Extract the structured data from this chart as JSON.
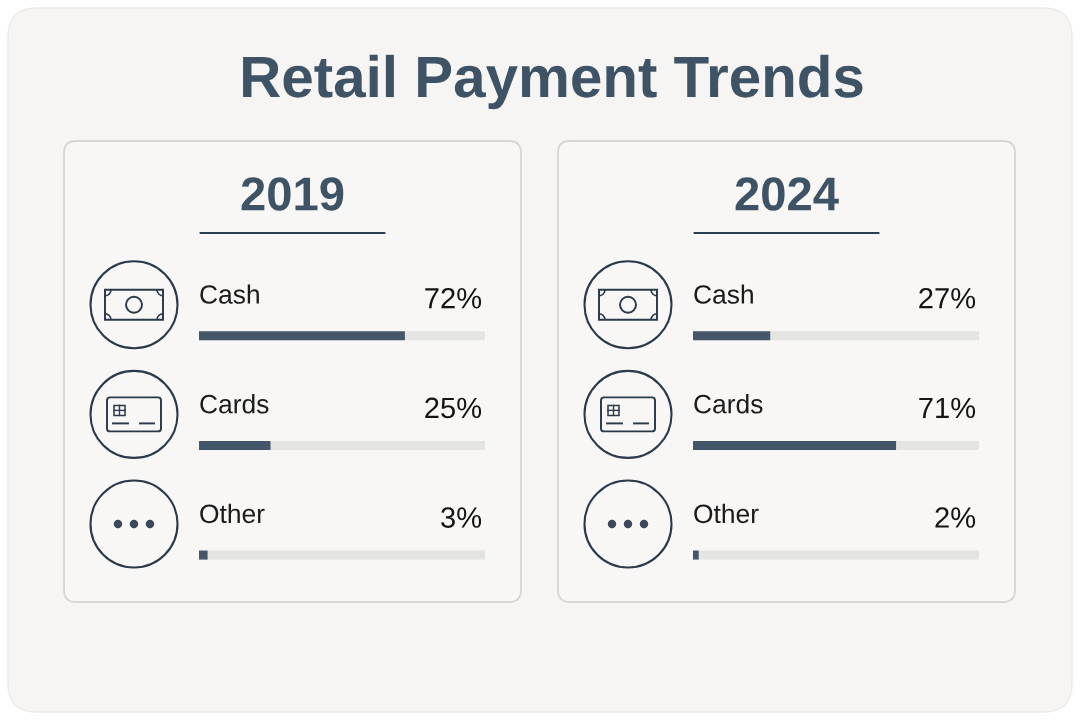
{
  "chart_data": [
    {
      "type": "other",
      "title": "Retail Payment Trends"
    },
    {
      "type": "bar",
      "orientation": "horizontal",
      "title": "2019",
      "categories": [
        "Cash",
        "Cards",
        "Other"
      ],
      "values": [
        72,
        25,
        3
      ],
      "value_labels": [
        "72%",
        "25%",
        "3%"
      ],
      "color": "#44566a",
      "xlim": [
        0,
        100
      ],
      "tick_labels": "y"
    },
    {
      "type": "bar",
      "orientation": "horizontal",
      "title": "2024",
      "categories": [
        "Cash",
        "Cards",
        "Other"
      ],
      "values": [
        27,
        71,
        2
      ],
      "value_labels": [
        "27%",
        "71%",
        "2%"
      ],
      "color": "#44566a",
      "xlim": [
        0,
        100
      ],
      "tick_labels": "y"
    }
  ]
}
